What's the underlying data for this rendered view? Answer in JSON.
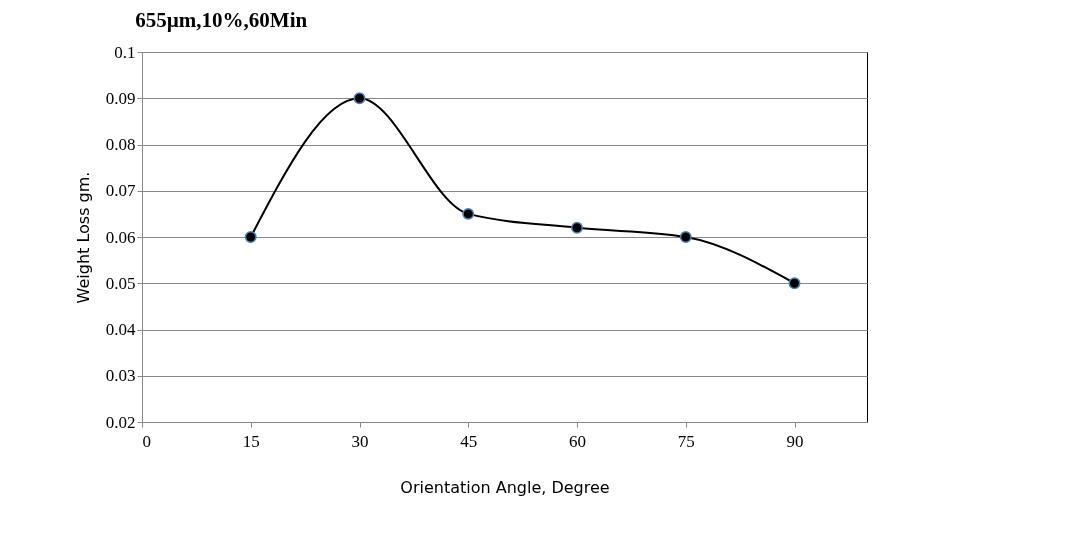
{
  "chart_data": {
    "type": "line",
    "title": "655µm,10%,60Min",
    "xlabel": "Orientation Angle, Degree",
    "ylabel": "Weight Loss gm.",
    "x": [
      15,
      30,
      45,
      60,
      75,
      90
    ],
    "series": [
      {
        "color": "#000000",
        "values": [
          0.06,
          0.09,
          0.065,
          0.062,
          0.06,
          0.05
        ]
      }
    ],
    "xlim": [
      0,
      100
    ],
    "xticks": [
      0,
      15,
      30,
      45,
      60,
      75,
      90
    ],
    "ylim": [
      0.02,
      0.1
    ],
    "yticks": [
      0.02,
      0.03,
      0.04,
      0.05,
      0.06,
      0.07,
      0.08,
      0.09,
      0.1
    ],
    "grid": "y",
    "marker": "circle",
    "line_style": "solid"
  }
}
